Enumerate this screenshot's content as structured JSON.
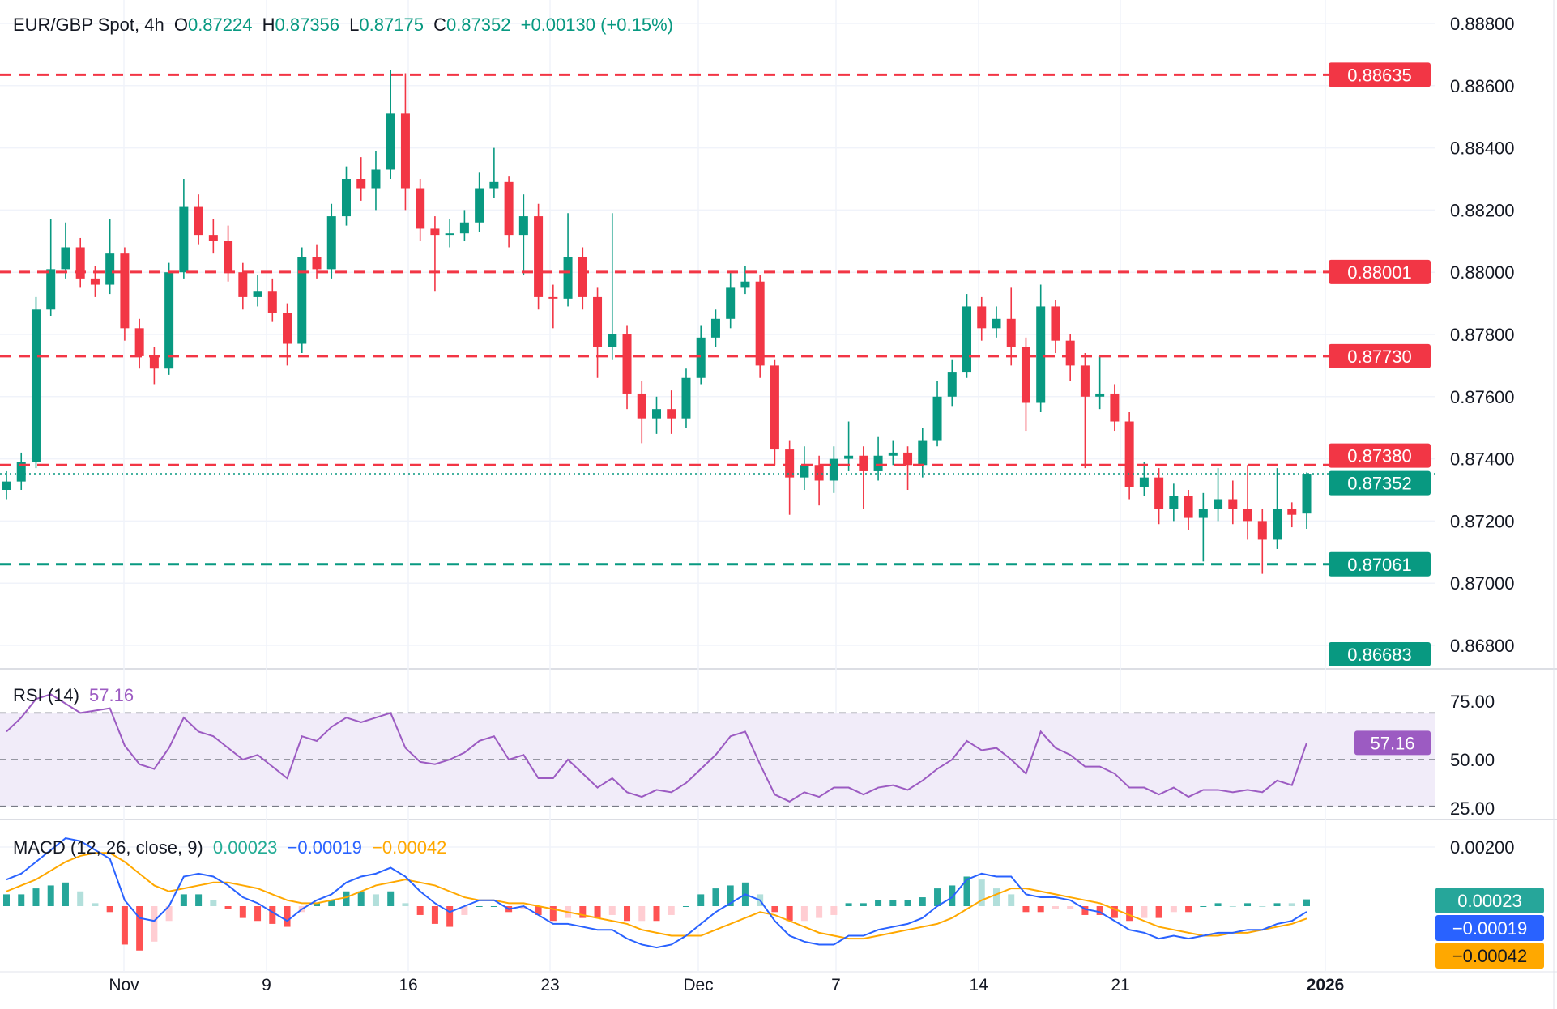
{
  "header": {
    "symbol": "EUR/GBP Spot, 4h",
    "open_label": "O",
    "open": "0.87224",
    "high_label": "H",
    "high": "0.87356",
    "low_label": "L",
    "low": "0.87175",
    "close_label": "C",
    "close": "0.87352",
    "change": "+0.00130 (+0.15%)"
  },
  "colors": {
    "up": "#089981",
    "down": "#f23645",
    "resistance": "#f23645",
    "support": "#089981",
    "rsi": "#9c5bc2",
    "rsi_band": "#f1ecf9",
    "macd": "#2962ff",
    "signal": "#ffa800",
    "hist_up_strong": "#26a69a",
    "hist_up_weak": "#b2dfdb",
    "hist_down_strong": "#ff5252",
    "hist_down_weak": "#ffcdd2"
  },
  "chart_data": [
    {
      "type": "candlestick",
      "title": "EUR/GBP Spot, 4h",
      "ylim": [
        0.8665,
        0.8882
      ],
      "y_ticks": [
        "0.88800",
        "0.88600",
        "0.88400",
        "0.88200",
        "0.88000",
        "0.87800",
        "0.87600",
        "0.87400",
        "0.87200",
        "0.87000",
        "0.86800"
      ],
      "x_ticks": [
        "Nov",
        "9",
        "16",
        "23",
        "Dec",
        "7",
        "14",
        "21",
        "2026"
      ],
      "grid": true,
      "candles": [
        [
          0.873,
          0.8736,
          0.8727,
          0.87327
        ],
        [
          0.87327,
          0.8742,
          0.873,
          0.8739
        ],
        [
          0.8739,
          0.8792,
          0.8737,
          0.8788
        ],
        [
          0.8788,
          0.8817,
          0.8786,
          0.8801
        ],
        [
          0.8801,
          0.8816,
          0.8798,
          0.8808
        ],
        [
          0.8808,
          0.8811,
          0.8795,
          0.8798
        ],
        [
          0.8798,
          0.8802,
          0.8792,
          0.8796
        ],
        [
          0.8796,
          0.8817,
          0.8793,
          0.8806
        ],
        [
          0.8806,
          0.8808,
          0.8778,
          0.8782
        ],
        [
          0.8782,
          0.8785,
          0.8769,
          0.8773
        ],
        [
          0.8773,
          0.8776,
          0.8764,
          0.8769
        ],
        [
          0.8769,
          0.8803,
          0.8767,
          0.88
        ],
        [
          0.88,
          0.883,
          0.8798,
          0.8821
        ],
        [
          0.8821,
          0.8825,
          0.8809,
          0.8812
        ],
        [
          0.8812,
          0.8817,
          0.8806,
          0.881
        ],
        [
          0.881,
          0.8815,
          0.8797,
          0.88
        ],
        [
          0.88,
          0.8803,
          0.8788,
          0.8792
        ],
        [
          0.8792,
          0.8799,
          0.8789,
          0.8794
        ],
        [
          0.8794,
          0.8798,
          0.8784,
          0.8787
        ],
        [
          0.8787,
          0.879,
          0.877,
          0.8777
        ],
        [
          0.8777,
          0.8808,
          0.8774,
          0.8805
        ],
        [
          0.8805,
          0.8809,
          0.8798,
          0.8801
        ],
        [
          0.8801,
          0.8822,
          0.8798,
          0.8818
        ],
        [
          0.8818,
          0.8834,
          0.8815,
          0.883
        ],
        [
          0.883,
          0.8837,
          0.8823,
          0.8827
        ],
        [
          0.8827,
          0.8839,
          0.882,
          0.8833
        ],
        [
          0.8833,
          0.8865,
          0.883,
          0.8851
        ],
        [
          0.8851,
          0.8864,
          0.882,
          0.8827
        ],
        [
          0.8827,
          0.883,
          0.881,
          0.8814
        ],
        [
          0.8814,
          0.8818,
          0.8794,
          0.8812
        ],
        [
          0.8812,
          0.8817,
          0.8808,
          0.88125
        ],
        [
          0.88125,
          0.882,
          0.881,
          0.8816
        ],
        [
          0.8816,
          0.8832,
          0.8813,
          0.8827
        ],
        [
          0.8827,
          0.884,
          0.8824,
          0.8829
        ],
        [
          0.8829,
          0.8831,
          0.8808,
          0.8812
        ],
        [
          0.8812,
          0.8825,
          0.8799,
          0.8818
        ],
        [
          0.8818,
          0.8822,
          0.8788,
          0.8792
        ],
        [
          0.8792,
          0.8796,
          0.8782,
          0.87915
        ],
        [
          0.87915,
          0.8819,
          0.8789,
          0.8805
        ],
        [
          0.8805,
          0.8808,
          0.8788,
          0.8792
        ],
        [
          0.8792,
          0.8795,
          0.8766,
          0.8776
        ],
        [
          0.8776,
          0.8819,
          0.8772,
          0.878
        ],
        [
          0.878,
          0.8783,
          0.8756,
          0.8761
        ],
        [
          0.8761,
          0.8765,
          0.8745,
          0.8753
        ],
        [
          0.8753,
          0.876,
          0.8748,
          0.8756
        ],
        [
          0.8756,
          0.8762,
          0.8748,
          0.8753
        ],
        [
          0.8753,
          0.8769,
          0.875,
          0.8766
        ],
        [
          0.8766,
          0.8783,
          0.8764,
          0.8779
        ],
        [
          0.8779,
          0.8788,
          0.8776,
          0.8785
        ],
        [
          0.8785,
          0.88,
          0.8782,
          0.8795
        ],
        [
          0.8795,
          0.8802,
          0.8793,
          0.8797
        ],
        [
          0.8797,
          0.8799,
          0.8766,
          0.877
        ],
        [
          0.877,
          0.8772,
          0.8738,
          0.8743
        ],
        [
          0.8743,
          0.8746,
          0.8722,
          0.8734
        ],
        [
          0.8734,
          0.8744,
          0.873,
          0.8738
        ],
        [
          0.8738,
          0.8741,
          0.8725,
          0.8733
        ],
        [
          0.8733,
          0.8744,
          0.8729,
          0.874
        ],
        [
          0.874,
          0.8752,
          0.8736,
          0.8741
        ],
        [
          0.8741,
          0.8744,
          0.8724,
          0.8736
        ],
        [
          0.8736,
          0.8747,
          0.8733,
          0.8741
        ],
        [
          0.8741,
          0.8746,
          0.8738,
          0.8742
        ],
        [
          0.8742,
          0.8744,
          0.873,
          0.8738
        ],
        [
          0.8738,
          0.875,
          0.8734,
          0.8746
        ],
        [
          0.8746,
          0.8765,
          0.8744,
          0.876
        ],
        [
          0.876,
          0.8772,
          0.8757,
          0.8768
        ],
        [
          0.8768,
          0.8793,
          0.8766,
          0.8789
        ],
        [
          0.8789,
          0.8792,
          0.8778,
          0.8782
        ],
        [
          0.8782,
          0.8789,
          0.8779,
          0.8785
        ],
        [
          0.8785,
          0.8795,
          0.877,
          0.8776
        ],
        [
          0.8776,
          0.8779,
          0.8749,
          0.8758
        ],
        [
          0.8758,
          0.8796,
          0.8755,
          0.8789
        ],
        [
          0.8789,
          0.8791,
          0.8774,
          0.8778
        ],
        [
          0.8778,
          0.878,
          0.8765,
          0.877
        ],
        [
          0.877,
          0.8774,
          0.8737,
          0.876
        ],
        [
          0.876,
          0.8773,
          0.8756,
          0.8761
        ],
        [
          0.8761,
          0.8764,
          0.8749,
          0.8752
        ],
        [
          0.8752,
          0.8755,
          0.8727,
          0.8731
        ],
        [
          0.8731,
          0.8739,
          0.8728,
          0.8734
        ],
        [
          0.8734,
          0.8737,
          0.8719,
          0.8724
        ],
        [
          0.8724,
          0.8732,
          0.872,
          0.8728
        ],
        [
          0.8728,
          0.873,
          0.8717,
          0.8721
        ],
        [
          0.8721,
          0.8729,
          0.8707,
          0.8724
        ],
        [
          0.8724,
          0.8737,
          0.872,
          0.8727
        ],
        [
          0.8727,
          0.8733,
          0.8719,
          0.8724
        ],
        [
          0.8724,
          0.8738,
          0.8714,
          0.872
        ],
        [
          0.872,
          0.8724,
          0.8703,
          0.8714
        ],
        [
          0.8714,
          0.8737,
          0.8711,
          0.8724
        ],
        [
          0.8724,
          0.8726,
          0.8718,
          0.8722
        ],
        [
          0.87224,
          0.87356,
          0.87175,
          0.87352
        ]
      ],
      "current_price": {
        "value": 0.87352,
        "label": "0.87352"
      },
      "levels": [
        {
          "value": 0.88635,
          "label": "0.88635",
          "kind": "resistance"
        },
        {
          "value": 0.88001,
          "label": "0.88001",
          "kind": "resistance"
        },
        {
          "value": 0.8773,
          "label": "0.87730",
          "kind": "resistance"
        },
        {
          "value": 0.8738,
          "label": "0.87380",
          "kind": "resistance"
        },
        {
          "value": 0.87061,
          "label": "0.87061",
          "kind": "support"
        },
        {
          "value": 0.86683,
          "label": "0.86683",
          "kind": "support"
        }
      ]
    },
    {
      "type": "line",
      "title": "RSI (14)",
      "last_value": "57.16",
      "ylim": [
        22,
        82
      ],
      "y_ticks": [
        "75.00",
        "50.00",
        "25.00"
      ],
      "band": [
        30,
        70
      ],
      "midline": 50,
      "values": [
        62,
        68,
        76,
        78,
        74,
        70,
        71,
        72,
        56,
        48,
        46,
        55,
        68,
        62,
        60,
        55,
        50,
        52,
        47,
        42,
        60,
        58,
        64,
        68,
        66,
        68,
        70,
        55,
        49,
        48,
        50,
        53,
        58,
        60,
        50,
        52,
        42,
        42,
        50,
        44,
        38,
        42,
        36,
        34,
        37,
        36,
        40,
        46,
        52,
        60,
        62,
        48,
        35,
        32,
        36,
        34,
        38,
        38,
        35,
        38,
        39,
        37,
        41,
        46,
        50,
        58,
        54,
        55,
        50,
        44,
        62,
        55,
        52,
        47,
        47,
        44,
        38,
        38,
        35,
        38,
        34,
        37,
        37,
        36,
        37,
        36,
        41,
        39,
        57.16
      ]
    },
    {
      "type": "line",
      "title": "MACD (12, 26, close, 9)",
      "last_histogram": "0.00023",
      "last_macd": "−0.00019",
      "last_signal": "−0.00042",
      "y_ticks": [
        "0.00200"
      ],
      "series": [
        {
          "key": "macd",
          "values": [
            0.0009,
            0.0011,
            0.0015,
            0.0019,
            0.0023,
            0.0022,
            0.0019,
            0.0016,
            0.0002,
            -0.0004,
            -0.0005,
            0.0,
            0.001,
            0.0011,
            0.001,
            0.0007,
            0.0003,
            0.0001,
            -0.0002,
            -0.0005,
            -0.0001,
            0.0002,
            0.0004,
            0.0008,
            0.001,
            0.0011,
            0.0013,
            0.001,
            0.0005,
            0.0001,
            -0.0002,
            0.0,
            0.0002,
            0.0002,
            -0.0001,
            0.0,
            -0.0003,
            -0.0006,
            -0.0006,
            -0.0007,
            -0.0008,
            -0.0008,
            -0.0011,
            -0.0013,
            -0.0014,
            -0.0013,
            -0.001,
            -0.0006,
            -0.0002,
            0.0001,
            0.0004,
            0.0002,
            -0.0005,
            -0.001,
            -0.0012,
            -0.0013,
            -0.0013,
            -0.001,
            -0.001,
            -0.0008,
            -0.0007,
            -0.0006,
            -0.0004,
            0.0,
            0.0003,
            0.0009,
            0.0011,
            0.001,
            0.001,
            0.0004,
            0.0003,
            0.0003,
            0.0002,
            -0.0001,
            -0.0002,
            -0.0005,
            -0.0008,
            -0.0009,
            -0.0011,
            -0.001,
            -0.0011,
            -0.001,
            -0.0009,
            -0.0009,
            -0.0008,
            -0.0008,
            -0.0006,
            -0.0005,
            -0.00019
          ]
        },
        {
          "key": "signal",
          "values": [
            0.0005,
            0.0007,
            0.0009,
            0.0012,
            0.0015,
            0.0017,
            0.0018,
            0.0018,
            0.0015,
            0.0011,
            0.0007,
            0.0005,
            0.0006,
            0.0007,
            0.0008,
            0.0008,
            0.0007,
            0.0006,
            0.0004,
            0.0002,
            0.0001,
            0.0001,
            0.0002,
            0.0003,
            0.0005,
            0.0007,
            0.0008,
            0.0009,
            0.0008,
            0.0007,
            0.0005,
            0.0003,
            0.0002,
            0.0002,
            0.0001,
            0.0001,
            0.0,
            -0.0001,
            -0.0002,
            -0.0003,
            -0.0004,
            -0.0005,
            -0.0006,
            -0.0008,
            -0.0009,
            -0.001,
            -0.001,
            -0.001,
            -0.0008,
            -0.0006,
            -0.0004,
            -0.0002,
            -0.0003,
            -0.0005,
            -0.0007,
            -0.0009,
            -0.001,
            -0.0011,
            -0.0011,
            -0.001,
            -0.0009,
            -0.0008,
            -0.0007,
            -0.0006,
            -0.0004,
            -0.0001,
            0.0002,
            0.0004,
            0.0006,
            0.0006,
            0.0005,
            0.0004,
            0.0003,
            0.0002,
            0.0001,
            -0.0001,
            -0.0003,
            -0.0005,
            -0.0007,
            -0.0008,
            -0.0009,
            -0.001,
            -0.001,
            -0.0009,
            -0.0009,
            -0.0008,
            -0.0007,
            -0.0006,
            -0.00042
          ]
        }
      ]
    }
  ]
}
